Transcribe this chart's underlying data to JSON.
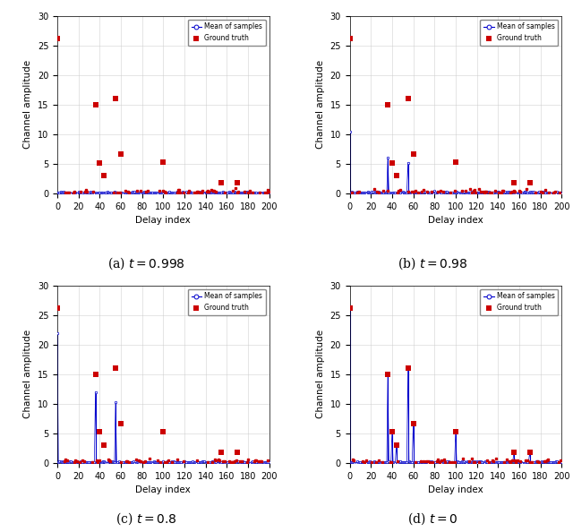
{
  "n_points": 201,
  "xlim": [
    0,
    200
  ],
  "ylim": [
    0,
    30
  ],
  "xlabel": "Delay index",
  "ylabel": "Channel amplitude",
  "xticks": [
    0,
    20,
    40,
    60,
    80,
    100,
    120,
    140,
    160,
    180,
    200
  ],
  "yticks": [
    0,
    5,
    10,
    15,
    20,
    25,
    30
  ],
  "mean_color": "#0000cc",
  "gt_color": "#cc0000",
  "legend_entries": [
    "Mean of samples",
    "Ground truth"
  ],
  "ground_truth": {
    "indices": [
      0,
      36,
      40,
      44,
      55,
      60,
      100,
      155,
      170
    ],
    "values": [
      26.2,
      15.0,
      5.2,
      3.0,
      16.0,
      6.6,
      5.3,
      1.8,
      1.8
    ]
  },
  "mean_spikes": {
    "0.998": {
      "indices": [],
      "values": []
    },
    "0.98": {
      "indices": [
        0,
        36,
        55
      ],
      "values": [
        10.5,
        6.0,
        5.2
      ]
    },
    "0.8": {
      "indices": [
        0,
        36,
        55
      ],
      "values": [
        22.0,
        12.0,
        10.2
      ]
    },
    "0.0": {
      "indices": [
        0,
        36,
        40,
        44,
        55,
        60,
        100,
        155,
        170
      ],
      "values": [
        26.2,
        15.0,
        5.2,
        3.0,
        16.0,
        6.6,
        5.3,
        1.8,
        1.8
      ]
    }
  },
  "label_texts": [
    "(a) $t = 0.998$",
    "(b) $t = 0.98$",
    "(c) $t = 0.8$",
    "(d) $t = 0$"
  ],
  "seed": 42
}
